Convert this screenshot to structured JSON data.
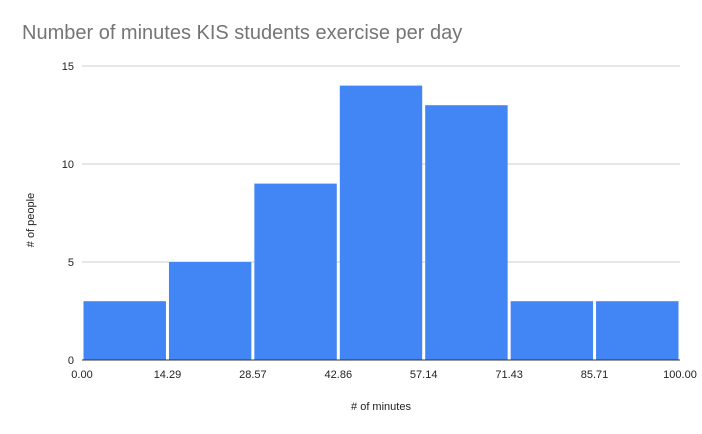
{
  "chart_data": {
    "type": "bar",
    "title": "Number of minutes KIS students exercise per day",
    "xlabel": "# of minutes",
    "ylabel": "# of people",
    "x_ticks": [
      "0.00",
      "14.29",
      "28.57",
      "42.86",
      "57.14",
      "71.43",
      "85.71",
      "100.00"
    ],
    "y_ticks": [
      "0",
      "5",
      "10",
      "15"
    ],
    "bins": [
      {
        "start": 0.0,
        "end": 14.29,
        "value": 3
      },
      {
        "start": 14.29,
        "end": 28.57,
        "value": 5
      },
      {
        "start": 28.57,
        "end": 42.86,
        "value": 9
      },
      {
        "start": 42.86,
        "end": 57.14,
        "value": 14
      },
      {
        "start": 57.14,
        "end": 71.43,
        "value": 13
      },
      {
        "start": 71.43,
        "end": 85.71,
        "value": 3
      },
      {
        "start": 85.71,
        "end": 100.0,
        "value": 3
      }
    ],
    "xlim": [
      0,
      100
    ],
    "ylim": [
      0,
      15
    ],
    "grid": true,
    "bar_color": "#4285f4",
    "grid_color": "#cccccc"
  }
}
